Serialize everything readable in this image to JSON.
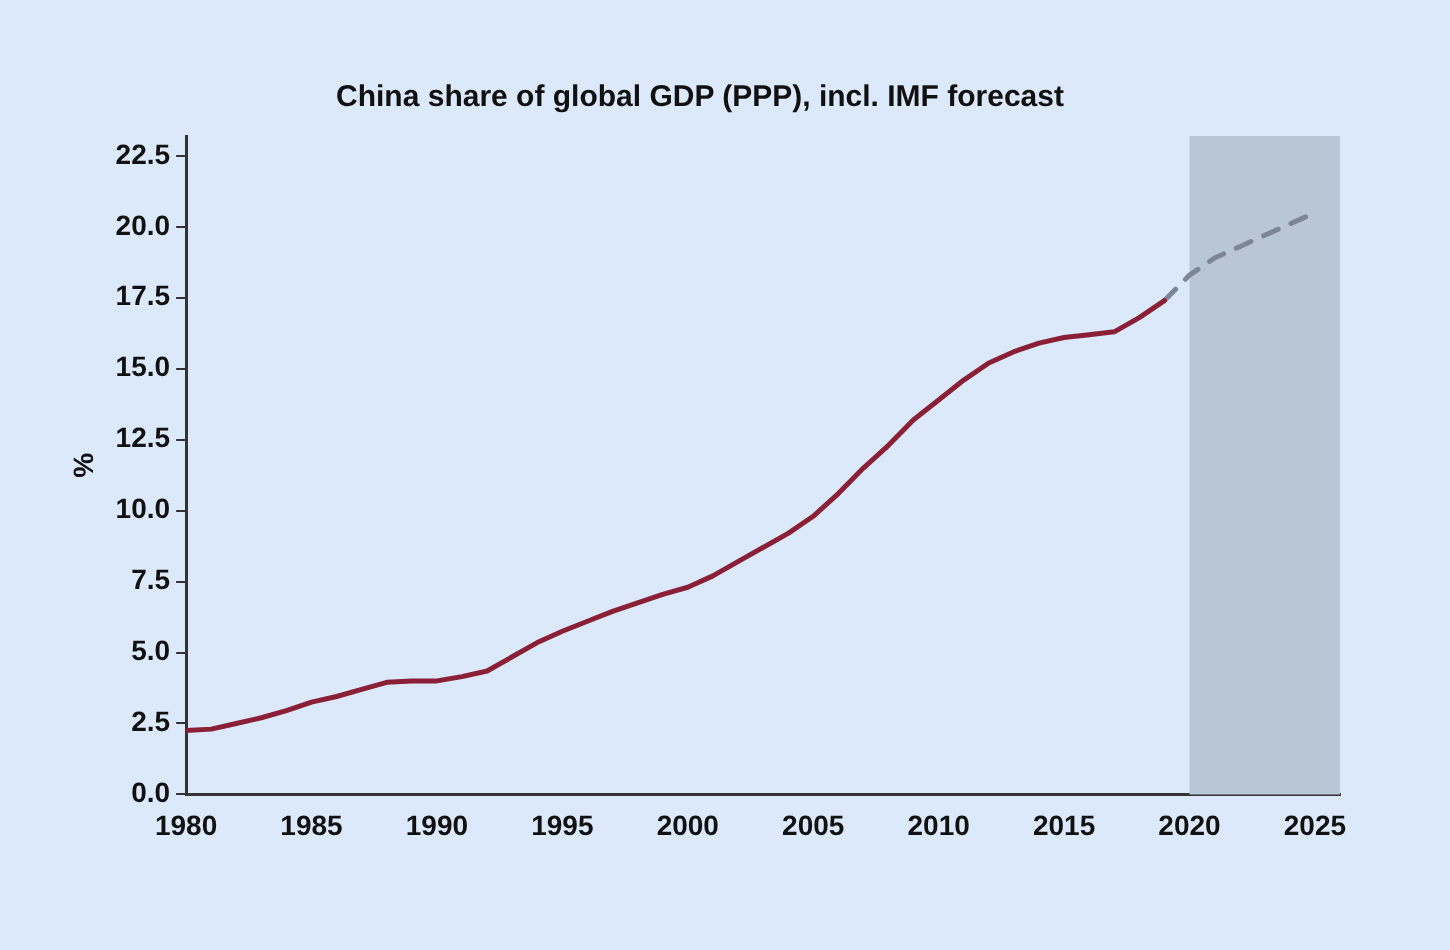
{
  "chart_data": {
    "type": "line",
    "title": "China share of global GDP (PPP), incl. IMF forecast",
    "ylabel": "%",
    "series": [
      {
        "color": "#8b1f35",
        "line_style": "solid",
        "x": [
          1980,
          1981,
          1982,
          1983,
          1984,
          1985,
          1986,
          1987,
          1988,
          1989,
          1990,
          1991,
          1992,
          1993,
          1994,
          1995,
          1996,
          1997,
          1998,
          1999,
          2000,
          2001,
          2002,
          2003,
          2004,
          2005,
          2006,
          2007,
          2008,
          2009,
          2010,
          2011,
          2012,
          2013,
          2014,
          2015,
          2016,
          2017,
          2018,
          2019
        ],
        "values": [
          2.25,
          2.3,
          2.5,
          2.7,
          2.95,
          3.25,
          3.45,
          3.7,
          3.95,
          4.0,
          4.0,
          4.15,
          4.35,
          4.85,
          5.35,
          5.75,
          6.1,
          6.45,
          6.75,
          7.05,
          7.3,
          7.7,
          8.2,
          8.7,
          9.2,
          9.8,
          10.6,
          11.5,
          12.3,
          13.2,
          13.9,
          14.6,
          15.2,
          15.6,
          15.9,
          16.1,
          16.2,
          16.3,
          16.8,
          17.4
        ]
      },
      {
        "color": "#7d8696",
        "line_style": "dashed",
        "x": [
          2019,
          2020,
          2021,
          2022,
          2023,
          2024,
          2025
        ],
        "values": [
          17.4,
          18.3,
          18.9,
          19.3,
          19.7,
          20.1,
          20.5
        ]
      }
    ],
    "xlim": [
      1980,
      2026
    ],
    "xticks": [
      1980,
      1985,
      1990,
      1995,
      2000,
      2005,
      2010,
      2015,
      2020,
      2025
    ],
    "ylim": [
      0,
      23.2
    ],
    "yticks": [
      {
        "value": 0,
        "label": "0.0"
      },
      {
        "value": 2.5,
        "label": "2.5"
      },
      {
        "value": 5,
        "label": "5.0"
      },
      {
        "value": 7.5,
        "label": "7.5"
      },
      {
        "value": 10,
        "label": "10.0"
      },
      {
        "value": 12.5,
        "label": "12.5"
      },
      {
        "value": 15,
        "label": "15.0"
      },
      {
        "value": 17.5,
        "label": "17.5"
      },
      {
        "value": 20,
        "label": "20.0"
      },
      {
        "value": 22.5,
        "label": "22.5"
      }
    ],
    "bands": [
      {
        "axis": "x",
        "from": 2020,
        "to": 2026,
        "color": "#b9c6d6"
      }
    ],
    "grid": false,
    "legend": false,
    "marker": "none"
  }
}
